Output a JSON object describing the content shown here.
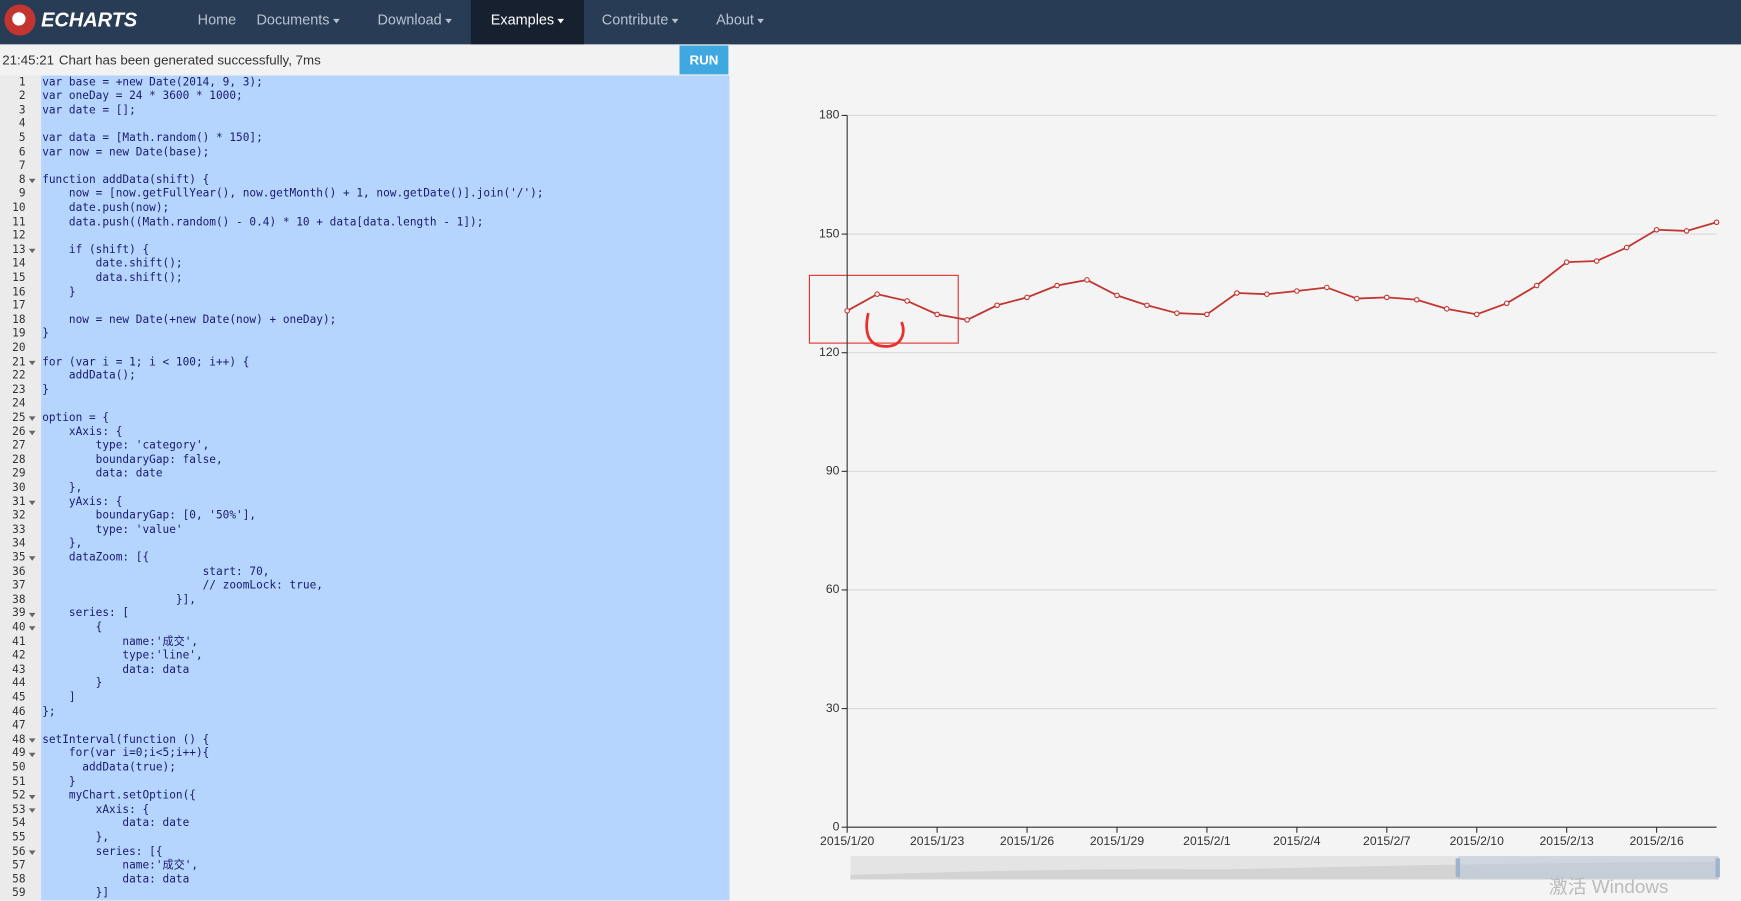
{
  "nav": {
    "logo": "ECHARTS",
    "items": [
      "Home",
      "Documents",
      "Download",
      "Examples",
      "Contribute",
      "About"
    ],
    "active": 3
  },
  "status": {
    "time": "21:45:21",
    "message": "Chart has been generated successfully, 7ms",
    "button": "RUN"
  },
  "code": {
    "lines": [
      {
        "n": 1,
        "code": "var base = +new Date(2014, 9, 3);"
      },
      {
        "n": 2,
        "code": "var oneDay = 24 * 3600 * 1000;"
      },
      {
        "n": 3,
        "code": "var date = [];"
      },
      {
        "n": 4
      },
      {
        "n": 5,
        "code": "var data = [Math.random() * 150];"
      },
      {
        "n": 6,
        "code": "var now = new Date(base);"
      },
      {
        "n": 7
      },
      {
        "n": 8,
        "code": "function addData(shift) {",
        "fold": true
      },
      {
        "n": 9,
        "code": "    now = [now.getFullYear(), now.getMonth() + 1, now.getDate()].join('/');"
      },
      {
        "n": 10,
        "code": "    date.push(now);"
      },
      {
        "n": 11,
        "code": "    data.push((Math.random() - 0.4) * 10 + data[data.length - 1]);"
      },
      {
        "n": 12
      },
      {
        "n": 13,
        "code": "    if (shift) {",
        "fold": true
      },
      {
        "n": 14,
        "code": "        date.shift();"
      },
      {
        "n": 15,
        "code": "        data.shift();"
      },
      {
        "n": 16,
        "code": "    }"
      },
      {
        "n": 17
      },
      {
        "n": 18,
        "code": "    now = new Date(+new Date(now) + oneDay);"
      },
      {
        "n": 19,
        "code": "}"
      },
      {
        "n": 20
      },
      {
        "n": 21,
        "code": "for (var i = 1; i < 100; i++) {",
        "fold": true
      },
      {
        "n": 22,
        "code": "    addData();"
      },
      {
        "n": 23,
        "code": "}"
      },
      {
        "n": 24
      },
      {
        "n": 25,
        "code": "option = {",
        "fold": true
      },
      {
        "n": 26,
        "code": "    xAxis: {",
        "fold": true
      },
      {
        "n": 27,
        "code": "        type: 'category',"
      },
      {
        "n": 28,
        "code": "        boundaryGap: false,"
      },
      {
        "n": 29,
        "code": "        data: date"
      },
      {
        "n": 30,
        "code": "    },"
      },
      {
        "n": 31,
        "code": "    yAxis: {",
        "fold": true
      },
      {
        "n": 32,
        "code": "        boundaryGap: [0, '50%'],"
      },
      {
        "n": 33,
        "code": "        type: 'value'"
      },
      {
        "n": 34,
        "code": "    },"
      },
      {
        "n": 35,
        "code": "    dataZoom: [{",
        "fold": true
      },
      {
        "n": 36,
        "code": "                        start: 70,"
      },
      {
        "n": 37,
        "code": "                        // zoomLock: true,"
      },
      {
        "n": 38,
        "code": "                    }],"
      },
      {
        "n": 39,
        "code": "    series: [",
        "fold": true
      },
      {
        "n": 40,
        "code": "        {",
        "fold": true
      },
      {
        "n": 41,
        "code": "            name:'成交',"
      },
      {
        "n": 42,
        "code": "            type:'line',"
      },
      {
        "n": 43,
        "code": "            data: data"
      },
      {
        "n": 44,
        "code": "        }"
      },
      {
        "n": 45,
        "code": "    ]"
      },
      {
        "n": 46,
        "code": "};"
      },
      {
        "n": 47
      },
      {
        "n": 48,
        "code": "setInterval(function () {",
        "fold": true
      },
      {
        "n": 49,
        "code": "    for(var i=0;i<5;i++){",
        "fold": true
      },
      {
        "n": 50,
        "code": "      addData(true);"
      },
      {
        "n": 51,
        "code": "    }"
      },
      {
        "n": 52,
        "code": "    myChart.setOption({",
        "fold": true
      },
      {
        "n": 53,
        "code": "        xAxis: {",
        "fold": true
      },
      {
        "n": 54,
        "code": "            data: date"
      },
      {
        "n": 55,
        "code": "        },"
      },
      {
        "n": 56,
        "code": "        series: [{",
        "fold": true
      },
      {
        "n": 57,
        "code": "            name:'成交',"
      },
      {
        "n": 58,
        "code": "            data: data"
      },
      {
        "n": 59,
        "code": "        }]"
      }
    ]
  },
  "chart_data": {
    "type": "line",
    "color": "#c23531",
    "grid": true,
    "categories": [
      "2015/1/20",
      null,
      null,
      "2015/1/23",
      null,
      null,
      "2015/1/26",
      null,
      null,
      "2015/1/29",
      null,
      null,
      "2015/2/1",
      null,
      null,
      "2015/2/4",
      null,
      null,
      "2015/2/7",
      null,
      null,
      "2015/2/10",
      null,
      null,
      "2015/2/13",
      null,
      null,
      "2015/2/16",
      null,
      null
    ],
    "values": [
      130.6,
      134.8,
      133.1,
      129.7,
      128.3,
      132.0,
      134.0,
      137.0,
      138.4,
      134.5,
      132.0,
      130.0,
      129.7,
      135.1,
      134.8,
      135.6,
      136.5,
      133.7,
      134.0,
      133.4,
      131.1,
      129.7,
      132.5,
      137.0,
      142.9,
      143.2,
      146.6,
      151.1,
      150.8,
      153.0
    ],
    "ylim": [
      0,
      180
    ],
    "yticks": [
      0,
      30,
      60,
      90,
      120,
      150,
      180
    ]
  },
  "watermark": "激活 Windows"
}
